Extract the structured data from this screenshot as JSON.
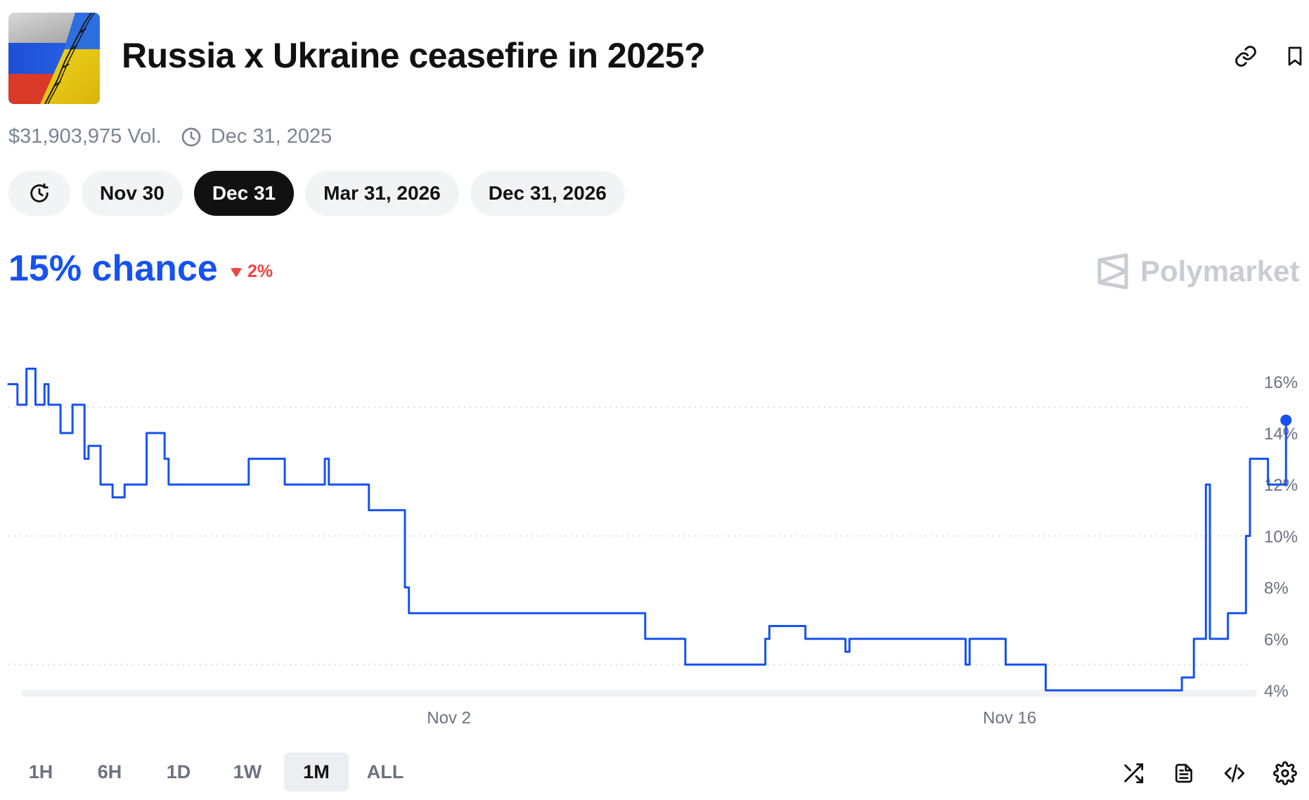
{
  "market": {
    "title": "Russia x Ukraine ceasefire in 2025?",
    "volume": "$31,903,975 Vol.",
    "end_date": "Dec 31, 2025"
  },
  "date_options": [
    "Nov 30",
    "Dec 31",
    "Mar 31, 2026",
    "Dec 31, 2026"
  ],
  "selected_date": "Dec 31",
  "chance": {
    "text": "15% chance",
    "change": "2%",
    "direction": "down"
  },
  "brand": {
    "name": "Polymarket"
  },
  "timeframes": [
    "1H",
    "6H",
    "1D",
    "1W",
    "1M",
    "ALL"
  ],
  "selected_timeframe": "1M",
  "icons": {
    "thumbnail": "russia-ukraine-flag-image",
    "header": [
      "link-icon",
      "bookmark-icon"
    ],
    "meta": "clock-icon",
    "date_history": "history-icon",
    "tools": [
      "shuffle-icon",
      "document-icon",
      "code-icon",
      "gear-icon"
    ]
  },
  "colors": {
    "accent": "#1652f0",
    "down": "#ef4444",
    "active_pill": "#111111",
    "muted": "#7b8593"
  },
  "chart_data": {
    "type": "line",
    "title": "",
    "xlabel": "",
    "ylabel": "",
    "x_ticks": [
      "Nov 2",
      "Nov 16"
    ],
    "y_ticks": [
      "16%",
      "14%",
      "12%",
      "10%",
      "8%",
      "6%",
      "4%"
    ],
    "ylim": [
      3.5,
      17
    ],
    "grid": "dotted horizontal",
    "series": [
      {
        "values": [
          {
            "x": "Oct 22",
            "y": 15.9
          },
          {
            "x": "Oct 22",
            "y": 15.1
          },
          {
            "x": "Oct 22",
            "y": 16.5
          },
          {
            "x": "Oct 22",
            "y": 15.1
          },
          {
            "x": "Oct 22",
            "y": 15.9
          },
          {
            "x": "Oct 23",
            "y": 15.1
          },
          {
            "x": "Oct 23",
            "y": 14.0
          },
          {
            "x": "Oct 23",
            "y": 15.1
          },
          {
            "x": "Oct 23",
            "y": 13.0
          },
          {
            "x": "Oct 24",
            "y": 13.5
          },
          {
            "x": "Oct 24",
            "y": 12.0
          },
          {
            "x": "Oct 24",
            "y": 11.5
          },
          {
            "x": "Oct 24",
            "y": 12.0
          },
          {
            "x": "Oct 25",
            "y": 12.0
          },
          {
            "x": "Oct 25",
            "y": 14.0
          },
          {
            "x": "Oct 25",
            "y": 13.0
          },
          {
            "x": "Oct 26",
            "y": 12.0
          },
          {
            "x": "Oct 27",
            "y": 12.0
          },
          {
            "x": "Oct 28",
            "y": 13.0
          },
          {
            "x": "Oct 28",
            "y": 12.0
          },
          {
            "x": "Oct 29",
            "y": 12.0
          },
          {
            "x": "Oct 29",
            "y": 13.0
          },
          {
            "x": "Oct 30",
            "y": 12.0
          },
          {
            "x": "Oct 30",
            "y": 12.0
          },
          {
            "x": "Oct 31",
            "y": 11.0
          },
          {
            "x": "Oct 31",
            "y": 8.0
          },
          {
            "x": "Nov 1",
            "y": 7.0
          },
          {
            "x": "Nov 6",
            "y": 7.0
          },
          {
            "x": "Nov 6",
            "y": 6.0
          },
          {
            "x": "Nov 7",
            "y": 6.0
          },
          {
            "x": "Nov 7",
            "y": 5.0
          },
          {
            "x": "Nov 9",
            "y": 5.0
          },
          {
            "x": "Nov 9",
            "y": 6.0
          },
          {
            "x": "Nov 10",
            "y": 6.5
          },
          {
            "x": "Nov 10",
            "y": 6.0
          },
          {
            "x": "Nov 11",
            "y": 6.0
          },
          {
            "x": "Nov 11",
            "y": 5.5
          },
          {
            "x": "Nov 12",
            "y": 6.0
          },
          {
            "x": "Nov 14",
            "y": 6.0
          },
          {
            "x": "Nov 14",
            "y": 5.0
          },
          {
            "x": "Nov 15",
            "y": 6.0
          },
          {
            "x": "Nov 15",
            "y": 5.0
          },
          {
            "x": "Nov 16",
            "y": 5.0
          },
          {
            "x": "Nov 16",
            "y": 4.0
          },
          {
            "x": "Nov 17",
            "y": 4.0
          },
          {
            "x": "Nov 18",
            "y": 4.0
          },
          {
            "x": "Nov 19",
            "y": 4.0
          },
          {
            "x": "Nov 20",
            "y": 4.0
          },
          {
            "x": "Nov 20",
            "y": 4.5
          },
          {
            "x": "Nov 20",
            "y": 6.0
          },
          {
            "x": "Nov 20",
            "y": 12.0
          },
          {
            "x": "Nov 21",
            "y": 6.0
          },
          {
            "x": "Nov 21",
            "y": 7.0
          },
          {
            "x": "Nov 21",
            "y": 10.0
          },
          {
            "x": "Nov 22",
            "y": 13.0
          },
          {
            "x": "Nov 22",
            "y": 12.0
          },
          {
            "x": "Nov 22",
            "y": 14.5
          }
        ]
      }
    ]
  }
}
